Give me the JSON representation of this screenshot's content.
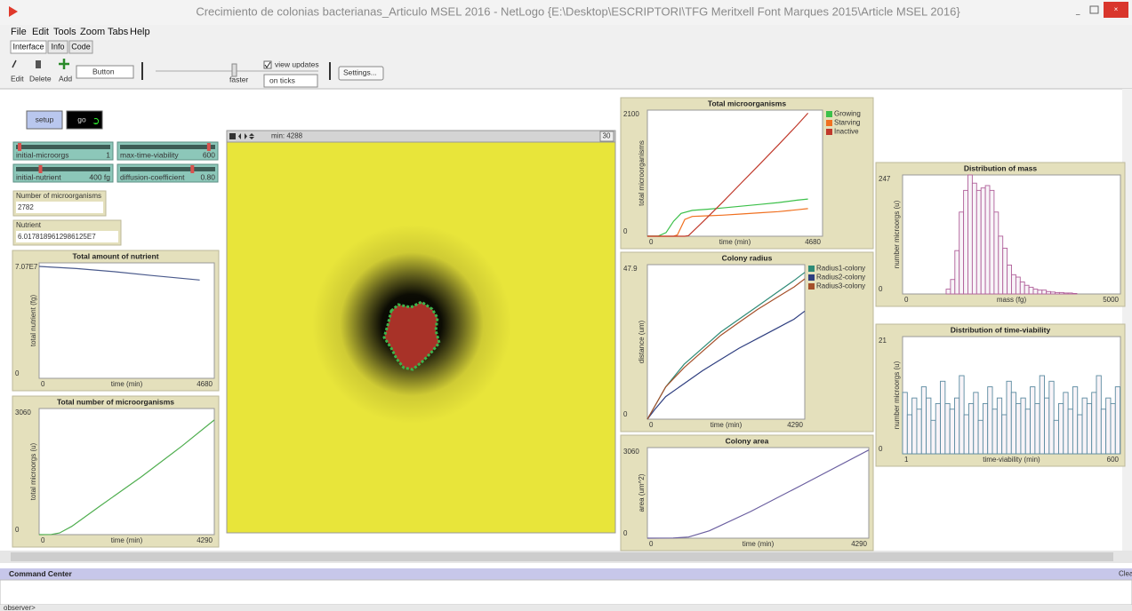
{
  "window": {
    "title": "Crecimiento de colonias bacterianas_Articulo MSEL 2016 - NetLogo {E:\\Desktop\\ESCRIPTORI\\TFG Meritxell Font Marques 2015\\Article MSEL 2016}"
  },
  "menu": [
    "File",
    "Edit",
    "Tools",
    "Zoom",
    "Tabs",
    "Help"
  ],
  "tabs": [
    "Interface",
    "Info",
    "Code"
  ],
  "toolbar": {
    "edit": "Edit",
    "delete": "Delete",
    "add": "Add",
    "widget": "Button",
    "speed": "faster",
    "view_updates": "view updates",
    "update_mode": "on ticks",
    "settings": "Settings..."
  },
  "buttons": [
    "setup",
    "go"
  ],
  "sliders": [
    {
      "name": "initial-microorgs",
      "value": "1"
    },
    {
      "name": "max-time-viability",
      "value": "600"
    },
    {
      "name": "initial-nutrient",
      "value": "400 fg"
    },
    {
      "name": "diffusion-coefficient",
      "value": "0.80"
    }
  ],
  "monitors": [
    {
      "name": "Number of microorganisms",
      "value": "2782"
    },
    {
      "name": "Nutrient",
      "value": "6.0178189612986125E7"
    }
  ],
  "view": {
    "ticks": "min: 4288",
    "speed_box": "30"
  },
  "command_center": {
    "title": "Command Center",
    "clear": "Clear",
    "prompt": "observer>"
  },
  "chart_data": [
    {
      "type": "line",
      "title": "Total amount of nutrient",
      "x_label": "time (min)",
      "y_label": "total nutrient (fg)",
      "xlim": [
        0,
        4680
      ],
      "ylim": [
        0,
        70700000
      ],
      "xticks": [
        0,
        4680
      ],
      "yticks": [
        0,
        {
          "value": 70700000,
          "label": "7.07E7"
        }
      ],
      "series": [
        {
          "color": "#4a5a8c",
          "x": [
            0,
            1000,
            2000,
            3000,
            4290
          ],
          "values": [
            68500000,
            67200000,
            65300000,
            63000000,
            60200000
          ]
        }
      ]
    },
    {
      "type": "line",
      "title": "Total number of microorganisms",
      "x_label": "time (min)",
      "y_label": "total microorgs (u)",
      "xlim": [
        0,
        4290
      ],
      "ylim": [
        0,
        3060
      ],
      "xticks": [
        0,
        4290
      ],
      "yticks": [
        0,
        3060
      ],
      "series": [
        {
          "color": "#4fae4f",
          "x": [
            0,
            300,
            500,
            800,
            1500,
            2500,
            3500,
            4290
          ],
          "values": [
            1,
            5,
            40,
            200,
            700,
            1400,
            2150,
            2782
          ]
        }
      ]
    },
    {
      "type": "line",
      "title": "Total microorganisms",
      "x_label": "time (min)",
      "y_label": "total microorganisms",
      "xlim": [
        0,
        4680
      ],
      "ylim": [
        0,
        2100
      ],
      "xticks": [
        0,
        4680
      ],
      "yticks": [
        0,
        2100
      ],
      "series": [
        {
          "name": "Growing",
          "color": "#3cc04a",
          "x": [
            0,
            300,
            500,
            700,
            900,
            1200,
            1600,
            2000,
            2500,
            3000,
            3500,
            4000,
            4290
          ],
          "values": [
            1,
            5,
            60,
            250,
            380,
            430,
            450,
            470,
            500,
            530,
            560,
            600,
            620
          ]
        },
        {
          "name": "Starving",
          "color": "#f07020",
          "x": [
            0,
            700,
            800,
            900,
            1000,
            1200,
            1600,
            2000,
            2500,
            3000,
            3500,
            4000,
            4290
          ],
          "values": [
            0,
            0,
            20,
            150,
            280,
            330,
            340,
            350,
            370,
            390,
            410,
            440,
            460
          ]
        },
        {
          "name": "Inactive",
          "color": "#c0392b",
          "x": [
            0,
            1000,
            1100,
            1500,
            2000,
            2500,
            3000,
            3500,
            4000,
            4290
          ],
          "values": [
            0,
            0,
            10,
            250,
            560,
            880,
            1200,
            1520,
            1850,
            2050
          ]
        }
      ]
    },
    {
      "type": "line",
      "title": "Colony radius",
      "x_label": "time (min)",
      "y_label": "distance (um)",
      "xlim": [
        0,
        4290
      ],
      "ylim": [
        0,
        47.9
      ],
      "xticks": [
        0,
        4290
      ],
      "yticks": [
        0,
        47.9
      ],
      "series": [
        {
          "name": "Radius1-colony",
          "color": "#2e8b77",
          "x": [
            0,
            200,
            500,
            1000,
            1500,
            2000,
            2500,
            3000,
            3500,
            4000,
            4290
          ],
          "values": [
            0,
            4,
            10,
            17,
            22,
            27,
            31,
            35,
            39,
            43,
            45.5
          ]
        },
        {
          "name": "Radius2-colony",
          "color": "#2f3f80",
          "x": [
            0,
            200,
            500,
            1000,
            1500,
            2000,
            2500,
            3000,
            3500,
            4000,
            4290
          ],
          "values": [
            0,
            3,
            7,
            11,
            15,
            18.5,
            22,
            25,
            28,
            31,
            33.5
          ]
        },
        {
          "name": "Radius3-colony",
          "color": "#a5502a",
          "x": [
            0,
            200,
            500,
            1000,
            1500,
            2000,
            2500,
            3000,
            3500,
            4000,
            4290
          ],
          "values": [
            0,
            4,
            10,
            16,
            21,
            26,
            30,
            34,
            37.5,
            41,
            43.5
          ]
        }
      ]
    },
    {
      "type": "line",
      "title": "Colony area",
      "x_label": "time (min)",
      "y_label": "area (um^2)",
      "xlim": [
        0,
        4290
      ],
      "ylim": [
        0,
        3060
      ],
      "xticks": [
        0,
        4290
      ],
      "yticks": [
        0,
        3060
      ],
      "series": [
        {
          "color": "#6b5fa0",
          "x": [
            0,
            500,
            800,
            1200,
            2000,
            3000,
            4290
          ],
          "values": [
            0,
            5,
            40,
            250,
            900,
            1800,
            2980
          ]
        }
      ]
    },
    {
      "type": "histogram",
      "title": "Distribution of mass",
      "x_label": "mass (fg)",
      "y_label": "number microorgs (u)",
      "xlim": [
        0,
        5000
      ],
      "ylim": [
        0,
        247
      ],
      "xticks": [
        0,
        5000
      ],
      "yticks": [
        0,
        247
      ],
      "color": "#b0609a",
      "bins": [
        1000,
        1100,
        1200,
        1300,
        1400,
        1500,
        1600,
        1700,
        1800,
        1900,
        2000,
        2100,
        2200,
        2300,
        2400,
        2500,
        2600,
        2700,
        2800,
        2900,
        3000,
        3100,
        3200,
        3300,
        3400,
        3500,
        3600,
        3700,
        3800,
        3900,
        4000
      ],
      "values": [
        10,
        30,
        90,
        170,
        215,
        247,
        230,
        215,
        220,
        225,
        215,
        170,
        120,
        95,
        60,
        40,
        35,
        25,
        18,
        14,
        10,
        8,
        8,
        5,
        4,
        3,
        3,
        2,
        2,
        1
      ]
    },
    {
      "type": "histogram",
      "title": "Distribution of time-viability",
      "x_label": "time-viability (min)",
      "y_label": "number microorgs (u)",
      "xlim": [
        1,
        600
      ],
      "ylim": [
        0,
        21
      ],
      "xticks": [
        1,
        600
      ],
      "yticks": [
        0,
        21
      ],
      "color": "#5a8aa0",
      "bins": [
        1,
        14,
        27,
        40,
        53,
        66,
        79,
        92,
        105,
        118,
        131,
        144,
        157,
        170,
        183,
        196,
        209,
        222,
        235,
        248,
        261,
        274,
        287,
        300,
        313,
        326,
        339,
        352,
        365,
        378,
        391,
        404,
        417,
        430,
        443,
        456,
        469,
        482,
        495,
        508,
        521,
        534,
        547,
        560,
        573,
        586,
        599
      ],
      "values": [
        11,
        7,
        10,
        8,
        12,
        10,
        6,
        9,
        13,
        9,
        8,
        10,
        14,
        7,
        9,
        11,
        6,
        9,
        12,
        8,
        10,
        7,
        13,
        11,
        9,
        10,
        8,
        12,
        9,
        14,
        10,
        13,
        6,
        9,
        11,
        8,
        12,
        7,
        10,
        9,
        11,
        14,
        8,
        10,
        9,
        12
      ]
    }
  ]
}
